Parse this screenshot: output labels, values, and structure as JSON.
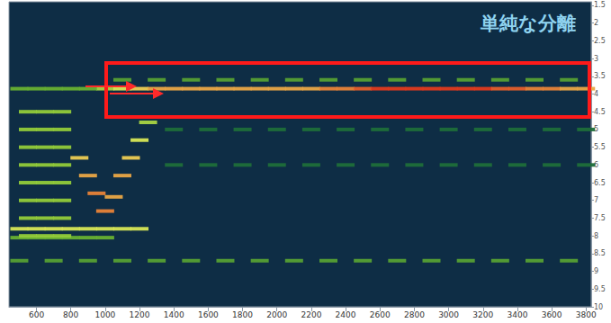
{
  "chart_data": {
    "type": "heatmap",
    "title": "単純な分離",
    "xlim": [
      440,
      3830
    ],
    "xticks": [
      600,
      800,
      1000,
      1200,
      1400,
      1600,
      1800,
      2000,
      2200,
      2400,
      2600,
      2800,
      3000,
      3200,
      3400,
      3600,
      3800
    ],
    "ylim": [
      1.4,
      10
    ],
    "yticks": [
      1.5,
      2,
      2.5,
      3,
      3.5,
      4,
      4.5,
      5,
      5.5,
      6,
      6.5,
      7,
      7.5,
      8,
      8.5,
      9,
      9.5,
      10
    ],
    "grid": false,
    "intensity_range": [
      0,
      1
    ],
    "cells": [
      [
        1000,
        3.85,
        0.6
      ],
      [
        1100,
        3.85,
        0.7
      ],
      [
        1200,
        3.85,
        0.8
      ],
      [
        1300,
        3.85,
        0.85
      ],
      [
        1400,
        3.85,
        0.85
      ],
      [
        1500,
        3.85,
        0.85
      ],
      [
        1600,
        3.85,
        0.85
      ],
      [
        1700,
        3.85,
        0.85
      ],
      [
        1800,
        3.85,
        0.85
      ],
      [
        1900,
        3.85,
        0.85
      ],
      [
        2000,
        3.85,
        0.85
      ],
      [
        2100,
        3.85,
        0.85
      ],
      [
        2200,
        3.85,
        0.85
      ],
      [
        2300,
        3.85,
        0.9
      ],
      [
        2400,
        3.85,
        0.9
      ],
      [
        2500,
        3.85,
        0.95
      ],
      [
        2600,
        3.85,
        1
      ],
      [
        2700,
        3.85,
        1
      ],
      [
        2800,
        3.85,
        1
      ],
      [
        2900,
        3.85,
        1
      ],
      [
        3000,
        3.85,
        1
      ],
      [
        3100,
        3.85,
        1
      ],
      [
        3200,
        3.85,
        1
      ],
      [
        3300,
        3.85,
        0.95
      ],
      [
        3400,
        3.85,
        0.95
      ],
      [
        3500,
        3.85,
        0.9
      ],
      [
        3600,
        3.85,
        0.9
      ],
      [
        3700,
        3.85,
        0.85
      ],
      [
        3800,
        3.85,
        0.85
      ],
      [
        1100,
        3.6,
        0.4
      ],
      [
        1300,
        3.6,
        0.4
      ],
      [
        1500,
        3.6,
        0.4
      ],
      [
        1700,
        3.6,
        0.4
      ],
      [
        1900,
        3.6,
        0.4
      ],
      [
        2100,
        3.6,
        0.4
      ],
      [
        2300,
        3.6,
        0.4
      ],
      [
        2500,
        3.6,
        0.4
      ],
      [
        2700,
        3.6,
        0.4
      ],
      [
        2900,
        3.6,
        0.4
      ],
      [
        3100,
        3.6,
        0.4
      ],
      [
        3300,
        3.6,
        0.4
      ],
      [
        3500,
        3.6,
        0.4
      ],
      [
        3700,
        3.6,
        0.4
      ],
      [
        500,
        3.85,
        0.45
      ],
      [
        600,
        3.85,
        0.45
      ],
      [
        700,
        3.85,
        0.45
      ],
      [
        800,
        3.85,
        0.45
      ],
      [
        900,
        3.85,
        0.45
      ],
      [
        500,
        8.7,
        0.4
      ],
      [
        700,
        8.7,
        0.4
      ],
      [
        900,
        8.7,
        0.4
      ],
      [
        1100,
        8.7,
        0.4
      ],
      [
        1300,
        8.7,
        0.4
      ],
      [
        1500,
        8.7,
        0.4
      ],
      [
        1700,
        8.7,
        0.4
      ],
      [
        1900,
        8.7,
        0.4
      ],
      [
        2100,
        8.7,
        0.4
      ],
      [
        2300,
        8.7,
        0.4
      ],
      [
        2500,
        8.7,
        0.4
      ],
      [
        2700,
        8.7,
        0.4
      ],
      [
        2900,
        8.7,
        0.4
      ],
      [
        3100,
        8.7,
        0.4
      ],
      [
        3300,
        8.7,
        0.4
      ],
      [
        3500,
        8.7,
        0.4
      ],
      [
        3700,
        8.7,
        0.4
      ],
      [
        500,
        7.8,
        0.7
      ],
      [
        600,
        7.8,
        0.7
      ],
      [
        700,
        7.8,
        0.7
      ],
      [
        800,
        7.8,
        0.7
      ],
      [
        900,
        7.8,
        0.7
      ],
      [
        1000,
        7.8,
        0.7
      ],
      [
        1100,
        7.8,
        0.7
      ],
      [
        1200,
        7.8,
        0.7
      ],
      [
        500,
        8.05,
        0.45
      ],
      [
        600,
        8.05,
        0.45
      ],
      [
        700,
        8.05,
        0.45
      ],
      [
        800,
        8.05,
        0.45
      ],
      [
        900,
        8.05,
        0.45
      ],
      [
        1000,
        8.05,
        0.45
      ],
      [
        850,
        5.8,
        0.8
      ],
      [
        900,
        6.3,
        0.85
      ],
      [
        950,
        6.8,
        0.9
      ],
      [
        1000,
        7.3,
        0.9
      ],
      [
        1050,
        6.9,
        0.85
      ],
      [
        1100,
        6.3,
        0.85
      ],
      [
        1150,
        5.8,
        0.8
      ],
      [
        1200,
        5.3,
        0.7
      ],
      [
        1250,
        4.8,
        0.6
      ],
      [
        550,
        4.5,
        0.55
      ],
      [
        550,
        5,
        0.55
      ],
      [
        550,
        5.5,
        0.55
      ],
      [
        550,
        6,
        0.55
      ],
      [
        550,
        6.5,
        0.55
      ],
      [
        550,
        7,
        0.55
      ],
      [
        550,
        7.5,
        0.55
      ],
      [
        550,
        8,
        0.55
      ],
      [
        650,
        4.5,
        0.55
      ],
      [
        650,
        5,
        0.55
      ],
      [
        650,
        5.5,
        0.55
      ],
      [
        650,
        6,
        0.55
      ],
      [
        650,
        6.5,
        0.55
      ],
      [
        650,
        7,
        0.55
      ],
      [
        650,
        7.5,
        0.55
      ],
      [
        650,
        8,
        0.55
      ],
      [
        750,
        4.5,
        0.55
      ],
      [
        750,
        5,
        0.55
      ],
      [
        750,
        5.5,
        0.55
      ],
      [
        750,
        6,
        0.55
      ],
      [
        750,
        6.5,
        0.55
      ],
      [
        750,
        7,
        0.55
      ],
      [
        750,
        7.5,
        0.55
      ],
      [
        750,
        8,
        0.55
      ],
      [
        1400,
        5,
        0.25
      ],
      [
        1400,
        6,
        0.25
      ],
      [
        1600,
        5,
        0.25
      ],
      [
        1600,
        6,
        0.25
      ],
      [
        1800,
        5,
        0.25
      ],
      [
        1800,
        6,
        0.25
      ],
      [
        2000,
        5,
        0.25
      ],
      [
        2000,
        6,
        0.25
      ],
      [
        2200,
        5,
        0.25
      ],
      [
        2200,
        6,
        0.25
      ],
      [
        2400,
        5,
        0.25
      ],
      [
        2400,
        6,
        0.25
      ],
      [
        2600,
        5,
        0.25
      ],
      [
        2600,
        6,
        0.25
      ],
      [
        2800,
        5,
        0.25
      ],
      [
        2800,
        6,
        0.25
      ],
      [
        3000,
        5,
        0.25
      ],
      [
        3000,
        6,
        0.25
      ],
      [
        3200,
        5,
        0.25
      ],
      [
        3200,
        6,
        0.25
      ],
      [
        3400,
        5,
        0.25
      ],
      [
        3400,
        6,
        0.25
      ],
      [
        3600,
        5,
        0.25
      ],
      [
        3600,
        6,
        0.25
      ],
      [
        3800,
        5,
        0.25
      ],
      [
        3800,
        6,
        0.25
      ]
    ]
  }
}
